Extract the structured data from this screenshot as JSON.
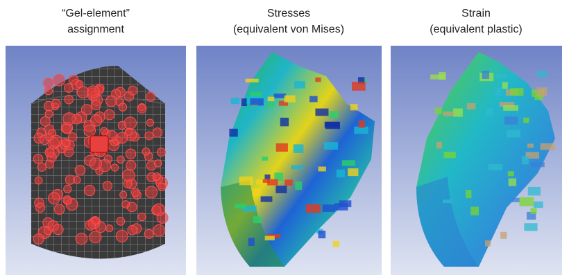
{
  "panels": [
    {
      "title": [
        "“Gel-element”",
        "assignment"
      ]
    },
    {
      "title": [
        "Stresses",
        "(equivalent von Mises)"
      ]
    },
    {
      "title": [
        "Strain",
        "(equivalent plastic)"
      ]
    }
  ]
}
